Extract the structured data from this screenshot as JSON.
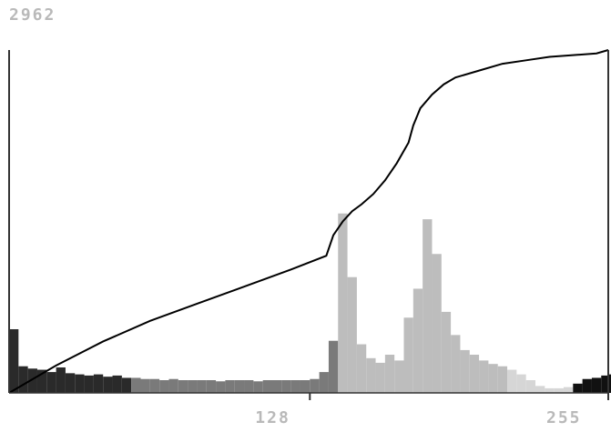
{
  "chart_data": {
    "type": "bar",
    "title": "",
    "xlabel": "",
    "ylabel": "",
    "y_max_label": "2962",
    "ylim": [
      0,
      2962
    ],
    "xlim": [
      0,
      255
    ],
    "x_ticks": [
      128,
      255
    ],
    "x_tick_labels": [
      "128",
      "255"
    ],
    "grid": false,
    "legend": "none",
    "histogram_bins_sampled_every_4": {
      "x": [
        0,
        4,
        8,
        12,
        16,
        20,
        24,
        28,
        32,
        36,
        40,
        44,
        48,
        52,
        56,
        60,
        64,
        68,
        72,
        76,
        80,
        84,
        88,
        92,
        96,
        100,
        104,
        108,
        112,
        116,
        120,
        124,
        128,
        132,
        136,
        140,
        144,
        148,
        152,
        156,
        160,
        164,
        168,
        172,
        176,
        180,
        184,
        188,
        192,
        196,
        200,
        204,
        208,
        212,
        216,
        220,
        224,
        228,
        232,
        236,
        240,
        244,
        248,
        252,
        255
      ],
      "counts": [
        550,
        230,
        210,
        200,
        180,
        220,
        170,
        160,
        150,
        160,
        140,
        150,
        130,
        130,
        120,
        120,
        110,
        120,
        110,
        110,
        110,
        110,
        100,
        110,
        110,
        110,
        100,
        110,
        110,
        110,
        110,
        110,
        120,
        180,
        450,
        1550,
        1000,
        420,
        300,
        260,
        330,
        280,
        650,
        900,
        1500,
        1200,
        700,
        500,
        370,
        330,
        280,
        250,
        230,
        200,
        160,
        110,
        60,
        40,
        40,
        50,
        80,
        120,
        130,
        150,
        160
      ]
    },
    "cumulative_curve": {
      "type": "line",
      "x": [
        0,
        20,
        40,
        60,
        80,
        100,
        120,
        135,
        138,
        142,
        146,
        150,
        155,
        160,
        165,
        170,
        172,
        175,
        180,
        185,
        190,
        200,
        210,
        220,
        230,
        240,
        250,
        255
      ],
      "y_fraction": [
        0.0,
        0.08,
        0.15,
        0.21,
        0.26,
        0.31,
        0.36,
        0.4,
        0.46,
        0.5,
        0.53,
        0.55,
        0.58,
        0.62,
        0.67,
        0.73,
        0.78,
        0.83,
        0.87,
        0.9,
        0.92,
        0.94,
        0.96,
        0.97,
        0.98,
        0.985,
        0.99,
        1.0
      ]
    },
    "bar_colors": {
      "dark": "#2a2a2a",
      "mid": "#7a7a7a",
      "light": "#bdbdbd",
      "lighter": "#d6d6d6",
      "near_black_tail": "#111111"
    },
    "axis_color": "#333333",
    "curve_color": "#000000",
    "label_color": "#b9b9b9"
  }
}
